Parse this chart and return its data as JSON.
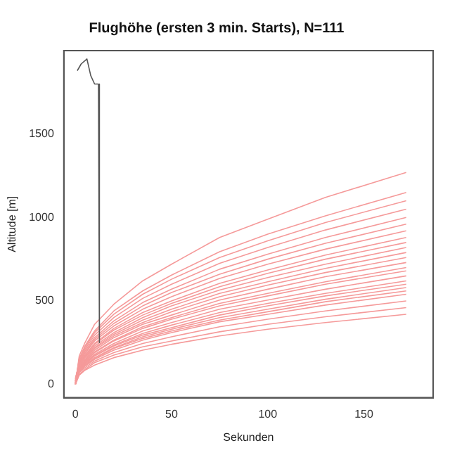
{
  "chart_data": {
    "type": "line",
    "title": "Flughöhe (ersten 3 min. Starts), N=111",
    "xlabel": "Sekunden",
    "ylabel": "Altitude [m]",
    "xlim": [
      -6,
      186
    ],
    "ylim": [
      -80,
      2000
    ],
    "xticks": [
      0,
      50,
      100,
      150
    ],
    "yticks": [
      0,
      500,
      1000,
      1500
    ],
    "grid": false,
    "legend": false,
    "marker": "none",
    "line_style": "solid",
    "x": [
      0,
      2,
      5,
      10,
      20,
      35,
      50,
      75,
      100,
      130,
      172
    ],
    "series": [
      {
        "color": "#555555",
        "x": [
          1,
          3,
          6,
          8,
          10,
          12,
          12.5
        ],
        "values": [
          1880,
          1920,
          1950,
          1850,
          1800,
          1800,
          250
        ]
      },
      {
        "color": "#f59a9a",
        "values": [
          0,
          170,
          250,
          360,
          480,
          620,
          720,
          880,
          990,
          1120,
          1270
        ]
      },
      {
        "color": "#f59a9a",
        "values": [
          10,
          155,
          230,
          320,
          440,
          560,
          655,
          795,
          900,
          1010,
          1150
        ]
      },
      {
        "color": "#f59a9a",
        "values": [
          0,
          150,
          220,
          310,
          420,
          540,
          630,
          760,
          860,
          970,
          1100
        ]
      },
      {
        "color": "#f59a9a",
        "values": [
          20,
          140,
          210,
          295,
          400,
          515,
          600,
          725,
          820,
          925,
          1050
        ]
      },
      {
        "color": "#f59a9a",
        "values": [
          0,
          135,
          200,
          280,
          380,
          490,
          570,
          690,
          780,
          880,
          1000
        ]
      },
      {
        "color": "#f59a9a",
        "values": [
          30,
          130,
          190,
          270,
          365,
          470,
          550,
          660,
          750,
          845,
          960
        ]
      },
      {
        "color": "#f59a9a",
        "values": [
          0,
          125,
          185,
          260,
          350,
          450,
          525,
          635,
          720,
          810,
          920
        ]
      },
      {
        "color": "#f59a9a",
        "values": [
          10,
          120,
          175,
          245,
          335,
          430,
          500,
          605,
          685,
          775,
          880
        ]
      },
      {
        "color": "#f59a9a",
        "values": [
          0,
          115,
          170,
          240,
          325,
          415,
          485,
          585,
          665,
          750,
          850
        ]
      },
      {
        "color": "#f59a9a",
        "values": [
          40,
          110,
          165,
          230,
          310,
          400,
          470,
          565,
          640,
          720,
          820
        ]
      },
      {
        "color": "#f59a9a",
        "values": [
          0,
          105,
          160,
          220,
          300,
          385,
          450,
          545,
          615,
          695,
          790
        ]
      },
      {
        "color": "#f59a9a",
        "values": [
          20,
          100,
          150,
          215,
          290,
          370,
          435,
          525,
          595,
          670,
          760
        ]
      },
      {
        "color": "#f59a9a",
        "values": [
          0,
          100,
          145,
          205,
          280,
          360,
          415,
          505,
          570,
          645,
          730
        ]
      },
      {
        "color": "#f59a9a",
        "values": [
          10,
          95,
          140,
          195,
          265,
          345,
          400,
          485,
          545,
          615,
          700
        ]
      },
      {
        "color": "#f59a9a",
        "values": [
          0,
          90,
          135,
          190,
          260,
          335,
          390,
          470,
          530,
          600,
          680
        ]
      },
      {
        "color": "#f59a9a",
        "values": [
          30,
          90,
          130,
          180,
          245,
          320,
          370,
          450,
          505,
          570,
          650
        ]
      },
      {
        "color": "#f59a9a",
        "values": [
          0,
          85,
          125,
          175,
          235,
          305,
          355,
          430,
          485,
          545,
          620
        ]
      },
      {
        "color": "#f59a9a",
        "values": [
          20,
          80,
          120,
          170,
          230,
          295,
          340,
          415,
          470,
          530,
          600
        ]
      },
      {
        "color": "#f59a9a",
        "values": [
          0,
          80,
          115,
          160,
          220,
          285,
          330,
          400,
          450,
          510,
          580
        ]
      },
      {
        "color": "#f59a9a",
        "values": [
          10,
          75,
          110,
          155,
          215,
          275,
          320,
          385,
          435,
          495,
          560
        ]
      },
      {
        "color": "#f59a9a",
        "values": [
          0,
          75,
          110,
          150,
          205,
          265,
          310,
          375,
          420,
          475,
          540
        ]
      },
      {
        "color": "#f59a9a",
        "values": [
          20,
          70,
          100,
          140,
          190,
          245,
          285,
          345,
          390,
          440,
          500
        ]
      },
      {
        "color": "#f59a9a",
        "values": [
          0,
          60,
          90,
          130,
          175,
          225,
          260,
          315,
          360,
          405,
          460
        ]
      },
      {
        "color": "#f59a9a",
        "values": [
          0,
          55,
          85,
          115,
          160,
          205,
          240,
          290,
          330,
          370,
          420
        ]
      }
    ]
  }
}
